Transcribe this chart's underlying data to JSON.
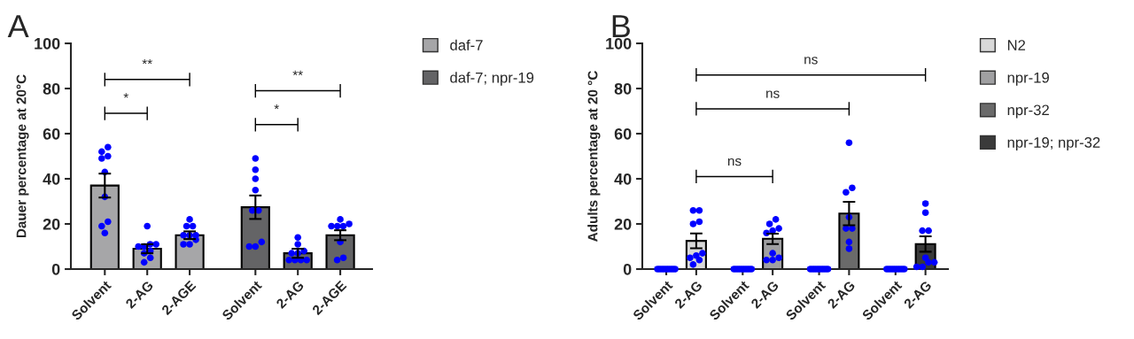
{
  "chart_data": [
    {
      "type": "bar",
      "title": "A",
      "ylabel": "Dauer percentage at 20°C",
      "categories": [
        "Solvent",
        "2-AG",
        "2-AGE"
      ],
      "ylim": [
        0,
        100
      ],
      "yticks": [
        0,
        20,
        40,
        60,
        80,
        100
      ],
      "series": [
        {
          "name": "daf-7",
          "color": "#a6a6a8",
          "values": [
            37,
            9,
            15
          ],
          "errors": [
            5.3,
            2,
            1.7
          ]
        },
        {
          "type": "scatter",
          "color": "#0000ff",
          "x": [
            "Solvent",
            "Solvent",
            "Solvent",
            "Solvent",
            "Solvent",
            "Solvent",
            "Solvent",
            "Solvent",
            "Solvent",
            "2-AG",
            "2-AG",
            "2-AG",
            "2-AG",
            "2-AG",
            "2-AG",
            "2-AG",
            "2-AG",
            "2-AG",
            "2-AGE",
            "2-AGE",
            "2-AGE",
            "2-AGE",
            "2-AGE",
            "2-AGE",
            "2-AGE",
            "2-AGE",
            "2-AGE"
          ],
          "values": [
            49,
            54,
            52,
            50,
            43,
            32,
            21,
            19,
            16,
            19,
            11,
            11,
            10,
            10,
            8,
            7,
            5,
            3,
            22,
            19,
            19,
            15,
            15,
            15,
            13,
            11,
            11
          ]
        }
      ],
      "annotations": [
        "**",
        "*"
      ]
    },
    {
      "type": "bar",
      "categories": [
        "Solvent",
        "2-AG",
        "2-AGE"
      ],
      "ylim": [
        0,
        100
      ],
      "tick_labels": "x",
      "legend": "top right",
      "series": [
        {
          "name": "daf-7; npr-19",
          "color": "#646466",
          "values": [
            27.4,
            7,
            15
          ],
          "errors": [
            5.2,
            2,
            2.2
          ]
        },
        {
          "type": "scatter",
          "color": "#0000ff",
          "x": [
            "Solvent",
            "Solvent",
            "Solvent",
            "Solvent",
            "Solvent",
            "Solvent",
            "Solvent",
            "Solvent",
            "Solvent",
            "2-AG",
            "2-AG",
            "2-AG",
            "2-AG",
            "2-AG",
            "2-AG",
            "2-AG",
            "2-AG",
            "2-AG",
            "2-AGE",
            "2-AGE",
            "2-AGE",
            "2-AGE",
            "2-AGE",
            "2-AGE",
            "2-AGE",
            "2-AGE"
          ],
          "values": [
            49,
            44,
            40,
            35,
            26,
            26,
            12,
            10,
            10,
            14,
            11,
            8,
            7,
            7,
            4,
            4,
            4,
            4,
            22,
            20,
            19,
            19,
            19,
            12,
            5,
            4
          ]
        }
      ],
      "annotations": [
        "**",
        "*"
      ]
    },
    {
      "type": "bar",
      "title": "B",
      "ylabel": "Adults percentage at 20 °C",
      "categories": [
        "Solvent",
        "2-AG"
      ],
      "ylim": [
        0,
        100
      ],
      "yticks": [
        0,
        20,
        40,
        60,
        80,
        100
      ],
      "series": [
        {
          "name": "N2",
          "color": "#d9d9d9",
          "values": [
            null,
            12.5
          ],
          "errors": [
            null,
            3.3
          ]
        },
        {
          "type": "scatter",
          "color": "#0000ff",
          "x": [
            "Solvent",
            "Solvent",
            "Solvent",
            "Solvent",
            "Solvent",
            "Solvent",
            "Solvent",
            "Solvent",
            "Solvent",
            "2-AG",
            "2-AG",
            "2-AG",
            "2-AG",
            "2-AG",
            "2-AG",
            "2-AG",
            "2-AG",
            "2-AG"
          ],
          "values": [
            0,
            0,
            0,
            0,
            0,
            0,
            0,
            0,
            0,
            26,
            26,
            21,
            20,
            7,
            6,
            5,
            4,
            2
          ]
        }
      ]
    },
    {
      "type": "bar",
      "categories": [
        "Solvent",
        "2-AG"
      ],
      "ylim": [
        0,
        100
      ],
      "tick_labels": "x",
      "series": [
        {
          "name": "npr-19",
          "color": "#a0a0a2",
          "values": [
            null,
            13.4
          ],
          "errors": [
            null,
            2.3
          ]
        },
        {
          "type": "scatter",
          "color": "#0000ff",
          "x": [
            "Solvent",
            "Solvent",
            "Solvent",
            "Solvent",
            "Solvent",
            "Solvent",
            "Solvent",
            "Solvent",
            "Solvent",
            "2-AG",
            "2-AG",
            "2-AG",
            "2-AG",
            "2-AG",
            "2-AG",
            "2-AG",
            "2-AG",
            "2-AG"
          ],
          "values": [
            0,
            0,
            0,
            0,
            0,
            0,
            0,
            0,
            0,
            22,
            20,
            18,
            17,
            16,
            7,
            5,
            4,
            4
          ]
        }
      ],
      "annotations": [
        "ns"
      ]
    },
    {
      "type": "bar",
      "categories": [
        "Solvent",
        "2-AG"
      ],
      "ylim": [
        0,
        100
      ],
      "tick_labels": "x",
      "series": [
        {
          "name": "npr-32",
          "color": "#6a6a6a",
          "values": [
            null,
            24.6
          ],
          "errors": [
            null,
            5.2
          ]
        },
        {
          "type": "scatter",
          "color": "#0000ff",
          "x": [
            "Solvent",
            "Solvent",
            "Solvent",
            "Solvent",
            "Solvent",
            "Solvent",
            "Solvent",
            "Solvent",
            "Solvent",
            "2-AG",
            "2-AG",
            "2-AG",
            "2-AG",
            "2-AG",
            "2-AG",
            "2-AG",
            "2-AG"
          ],
          "values": [
            0,
            0,
            0,
            0,
            0,
            0,
            0,
            0,
            0,
            56,
            36,
            34,
            23,
            18,
            18,
            12,
            9
          ]
        }
      ],
      "annotations": [
        "ns"
      ]
    },
    {
      "type": "bar",
      "categories": [
        "Solvent",
        "2-AG"
      ],
      "ylim": [
        0,
        100
      ],
      "tick_labels": "x",
      "legend": "top right",
      "series": [
        {
          "name": "npr-19; npr-32",
          "color": "#3a3a3a",
          "values": [
            null,
            11.1
          ],
          "errors": [
            null,
            3.4
          ]
        },
        {
          "type": "scatter",
          "color": "#0000ff",
          "x": [
            "Solvent",
            "Solvent",
            "Solvent",
            "Solvent",
            "Solvent",
            "Solvent",
            "Solvent",
            "Solvent",
            "Solvent",
            "2-AG",
            "2-AG",
            "2-AG",
            "2-AG",
            "2-AG",
            "2-AG",
            "2-AG",
            "2-AG",
            "2-AG"
          ],
          "values": [
            0,
            0,
            0,
            0,
            0,
            0,
            0,
            0,
            0,
            29,
            25,
            17,
            17,
            5,
            3,
            1,
            1,
            3
          ]
        }
      ],
      "annotations": [
        "ns"
      ]
    }
  ]
}
